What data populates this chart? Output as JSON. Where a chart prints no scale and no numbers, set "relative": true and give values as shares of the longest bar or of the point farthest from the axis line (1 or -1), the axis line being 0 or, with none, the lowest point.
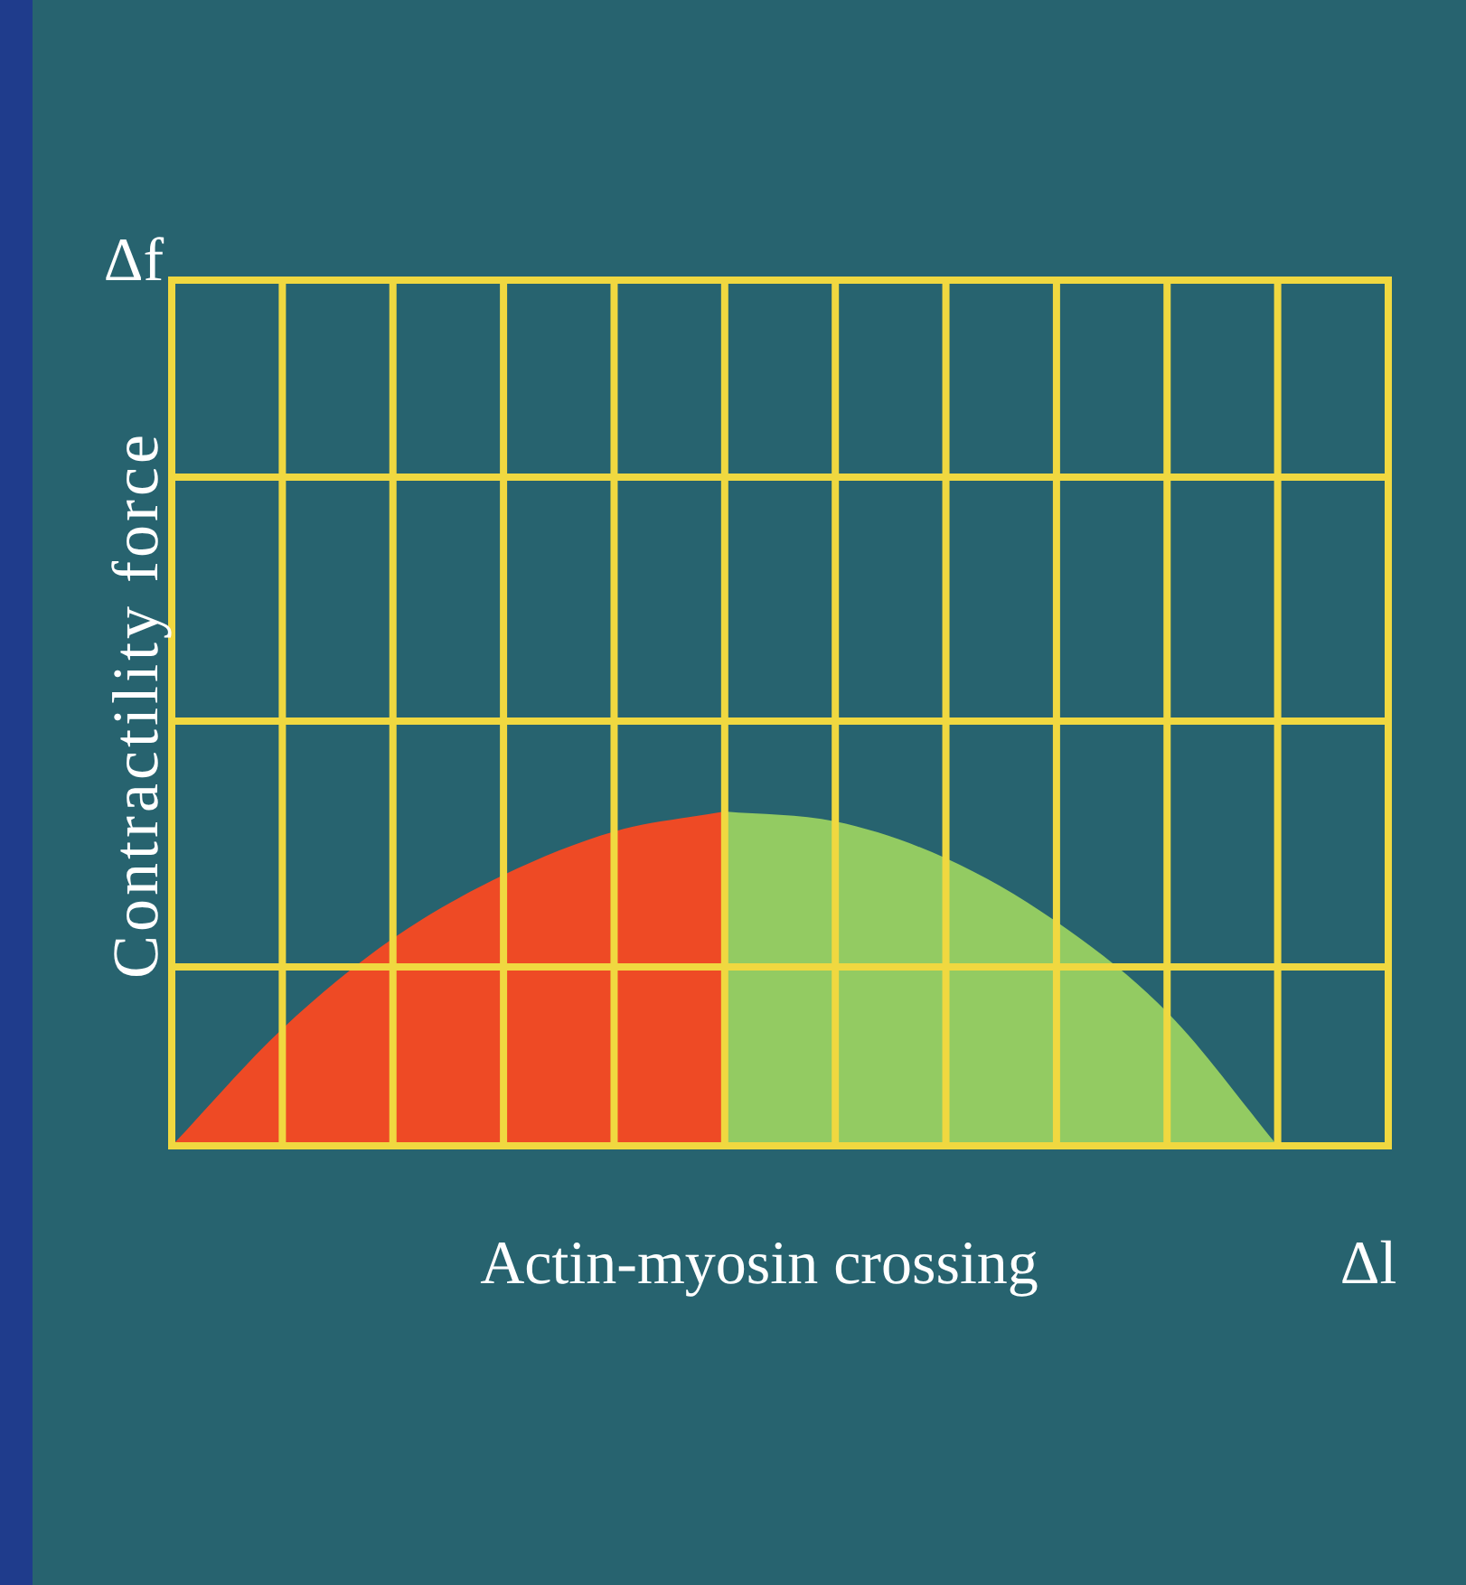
{
  "chart_data": {
    "type": "area",
    "relative": true,
    "xlabel": "Actin-myosin crossing",
    "ylabel": "Contractility force",
    "annotations": [
      "Δf",
      "Δl"
    ],
    "categories": [
      null,
      null,
      null,
      null,
      null,
      null,
      null,
      null,
      null,
      null,
      null,
      null
    ],
    "series": [
      {
        "color": "#ee4a25",
        "values": [
          0,
          0.35,
          0.62,
          0.81,
          0.94,
          1,
          null,
          null,
          null,
          null,
          null,
          null
        ]
      },
      {
        "color": "#93cb62",
        "values": [
          null,
          null,
          null,
          null,
          null,
          1,
          0.97,
          0.86,
          0.67,
          0.4,
          0,
          null
        ]
      }
    ],
    "grid": true,
    "legend": false
  }
}
